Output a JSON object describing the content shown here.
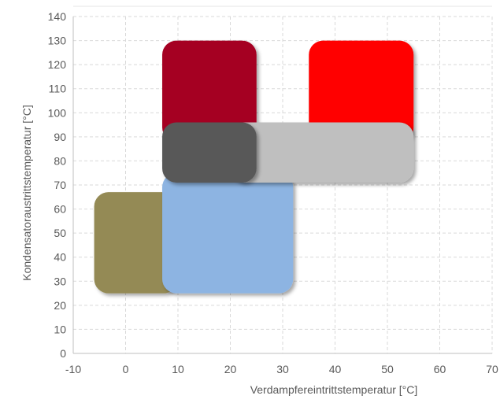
{
  "chart_data": {
    "type": "area",
    "xlabel": "Verdampfereintrittstemperatur [°C]",
    "ylabel": "Kondensatoraustrittstemperatur [°C]",
    "xlim": [
      -10,
      70
    ],
    "ylim": [
      0,
      140
    ],
    "x_ticks": [
      "-10",
      "0",
      "10",
      "20",
      "30",
      "40",
      "50",
      "60",
      "70"
    ],
    "y_ticks": [
      "0",
      "10",
      "20",
      "30",
      "40",
      "50",
      "60",
      "70",
      "80",
      "90",
      "100",
      "110",
      "120",
      "130",
      "140"
    ],
    "grid": true,
    "legend": "none",
    "regions": [
      {
        "x": [
          -6,
          10
        ],
        "y": [
          25,
          67
        ],
        "color": "#948A54"
      },
      {
        "x": [
          7,
          32
        ],
        "y": [
          25,
          75
        ],
        "color": "#8DB4E2"
      },
      {
        "x": [
          7,
          25
        ],
        "y": [
          88,
          130
        ],
        "color": "#A50021"
      },
      {
        "x": [
          35,
          55
        ],
        "y": [
          88,
          130
        ],
        "color": "#FF0000"
      },
      {
        "x": [
          20,
          55
        ],
        "y": [
          71,
          96
        ],
        "color": "#BFBFBF"
      },
      {
        "x": [
          7,
          25
        ],
        "y": [
          71,
          96
        ],
        "color": "#595959"
      }
    ]
  }
}
